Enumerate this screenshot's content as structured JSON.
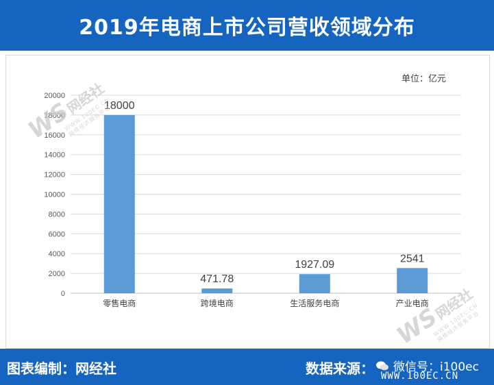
{
  "title": "2019年电商上市公司营收领域分布",
  "unit_label": "单位：亿元",
  "footer": {
    "left": "图表编制：网经社",
    "right": "数据来源：",
    "wechat": "微信号：i100ec",
    "url": "WWW.100EC.CN"
  },
  "watermark": {
    "mark": "WS",
    "name": "网经社",
    "url": "WWW.100EC.CN",
    "tagline": "网络经济服务平台"
  },
  "colors": {
    "header": "#1565c0",
    "bar": "#5b9bd5",
    "grid": "#d9d9d9"
  },
  "chart_data": {
    "type": "bar",
    "title": "2019年电商上市公司营收领域分布",
    "unit": "单位：亿元",
    "categories": [
      "零售电商",
      "跨境电商",
      "生活服务电商",
      "产业电商"
    ],
    "values": [
      18000,
      471.78,
      1927.09,
      2541
    ],
    "value_labels": [
      "18000",
      "471.78",
      "1927.09",
      "2541"
    ],
    "ylim": [
      0,
      20000
    ],
    "yticks": [
      0,
      2000,
      4000,
      6000,
      8000,
      10000,
      12000,
      14000,
      16000,
      18000,
      20000
    ],
    "grid": true,
    "legend": "none"
  }
}
